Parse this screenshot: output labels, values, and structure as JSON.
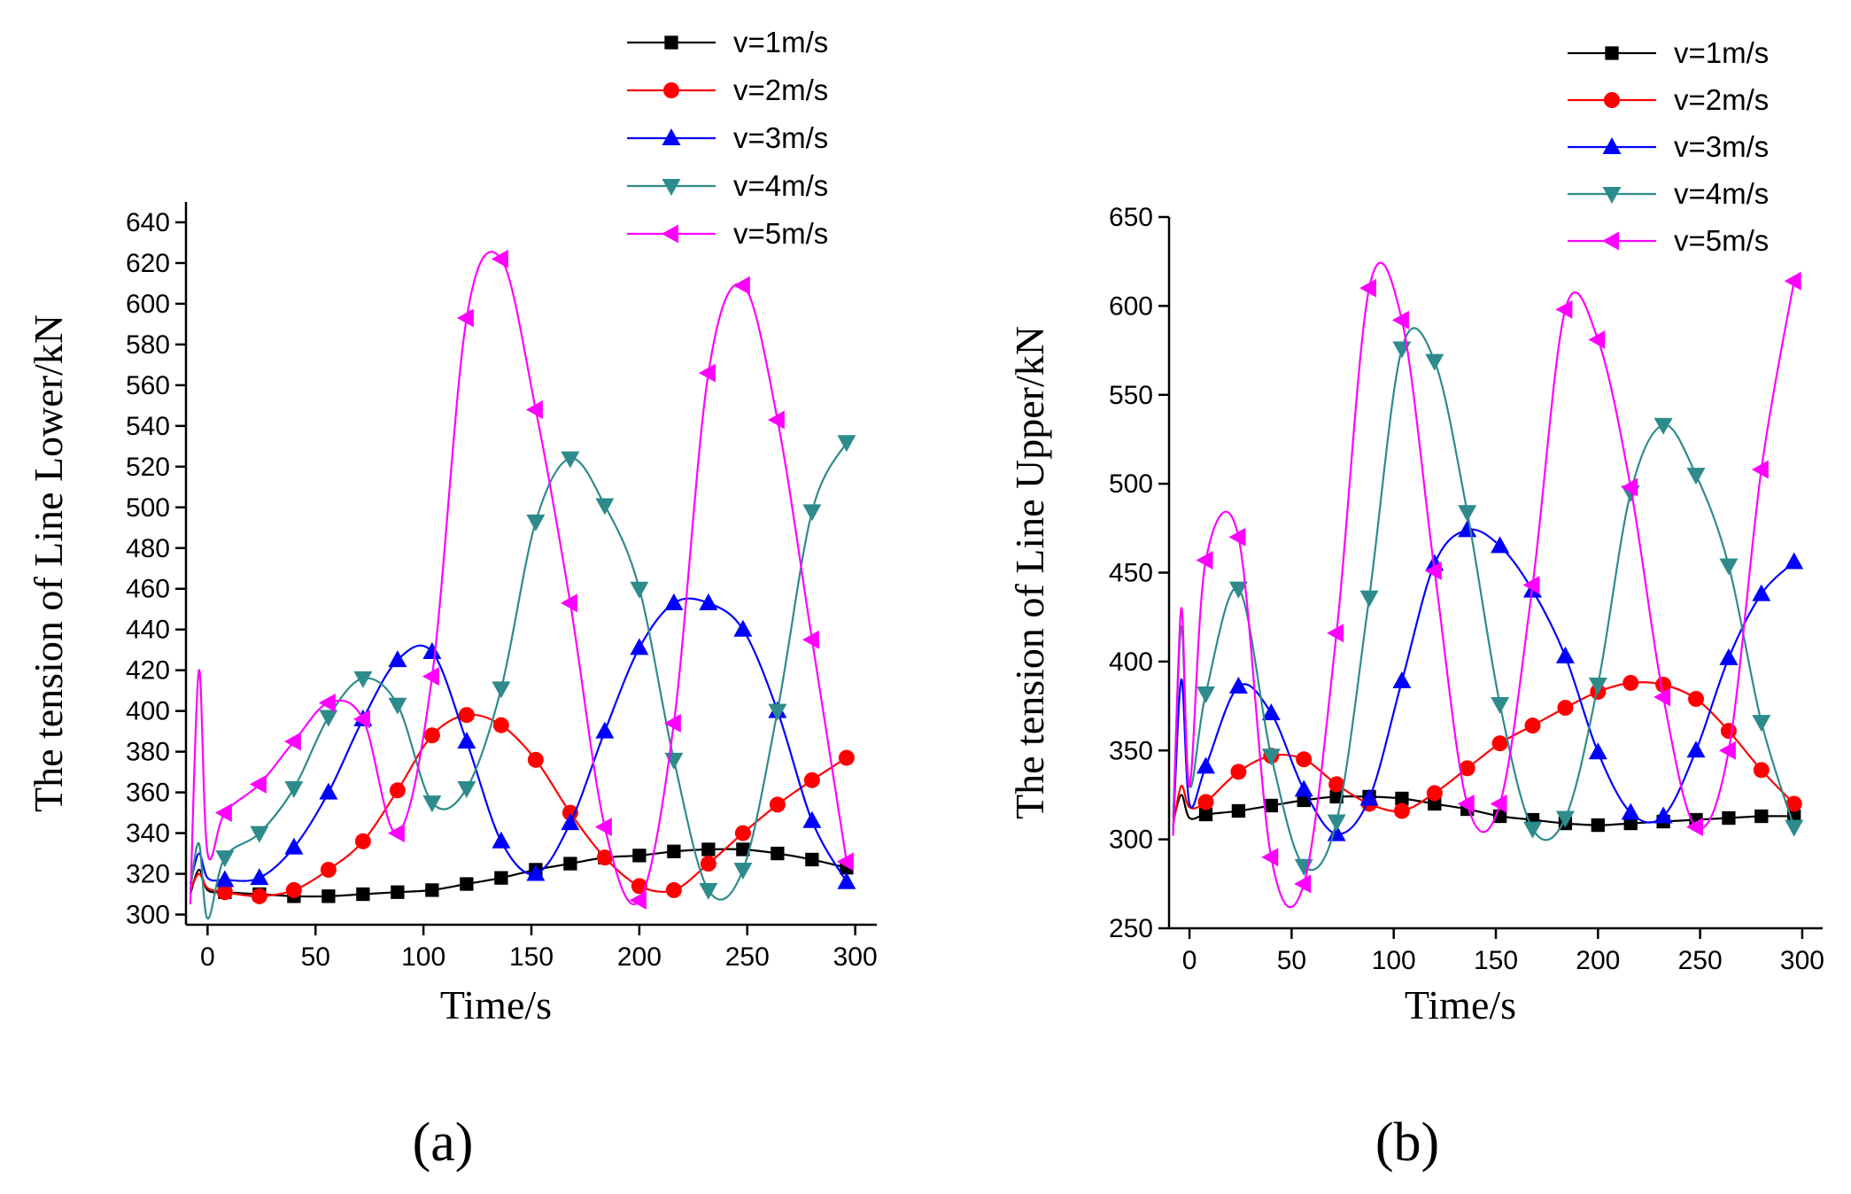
{
  "chart_data": [
    {
      "type": "line",
      "panel_label": "(a)",
      "xlabel": "Time/s",
      "ylabel": "The tension of Line Lower/kN",
      "xlim": [
        -10,
        310
      ],
      "ylim": [
        295,
        650
      ],
      "xticks": [
        0,
        50,
        100,
        150,
        200,
        250,
        300
      ],
      "yticks": [
        300,
        320,
        340,
        360,
        380,
        400,
        420,
        440,
        460,
        480,
        500,
        520,
        540,
        560,
        580,
        600,
        620,
        640
      ],
      "legend_position": "top-right",
      "series": [
        {
          "name": "v=1m/s",
          "color": "#000000",
          "marker": "square",
          "x": [
            -8,
            -4,
            0,
            8,
            24,
            40,
            56,
            72,
            88,
            104,
            120,
            136,
            152,
            168,
            184,
            200,
            216,
            232,
            248,
            264,
            280,
            296
          ],
          "y": [
            310,
            322,
            312,
            311,
            310,
            309,
            309,
            310,
            311,
            312,
            315,
            318,
            322,
            325,
            328,
            329,
            331,
            332,
            332,
            330,
            327,
            323
          ]
        },
        {
          "name": "v=2m/s",
          "color": "#ff0000",
          "marker": "circle",
          "x": [
            -8,
            -4,
            0,
            8,
            24,
            40,
            56,
            72,
            88,
            104,
            120,
            136,
            152,
            168,
            184,
            200,
            216,
            232,
            248,
            264,
            280,
            296
          ],
          "y": [
            312,
            320,
            313,
            311,
            309,
            312,
            322,
            336,
            361,
            388,
            398,
            393,
            376,
            350,
            328,
            314,
            312,
            325,
            340,
            354,
            366,
            377
          ]
        },
        {
          "name": "v=3m/s",
          "color": "#0000ff",
          "marker": "triangle-up",
          "x": [
            -8,
            -4,
            0,
            8,
            24,
            40,
            56,
            72,
            88,
            104,
            120,
            136,
            152,
            168,
            184,
            200,
            216,
            232,
            248,
            264,
            280,
            296
          ],
          "y": [
            315,
            330,
            318,
            317,
            318,
            333,
            360,
            396,
            425,
            429,
            385,
            336,
            320,
            345,
            390,
            431,
            453,
            453,
            440,
            400,
            346,
            316
          ]
        },
        {
          "name": "v=4m/s",
          "color": "#2e8b8b",
          "marker": "triangle-down",
          "x": [
            -8,
            -4,
            0,
            8,
            24,
            40,
            56,
            72,
            88,
            104,
            120,
            136,
            152,
            168,
            184,
            200,
            216,
            232,
            248,
            264,
            280,
            296
          ],
          "y": [
            312,
            335,
            298,
            328,
            340,
            362,
            397,
            416,
            403,
            355,
            362,
            411,
            493,
            524,
            501,
            460,
            376,
            312,
            322,
            400,
            498,
            532
          ]
        },
        {
          "name": "v=5m/s",
          "color": "#ff00ff",
          "marker": "triangle-left",
          "x": [
            -8,
            -4,
            0,
            8,
            24,
            40,
            56,
            72,
            88,
            104,
            120,
            136,
            152,
            168,
            184,
            200,
            216,
            232,
            248,
            264,
            280,
            296
          ],
          "y": [
            305,
            420,
            330,
            350,
            364,
            385,
            404,
            396,
            340,
            417,
            593,
            622,
            548,
            453,
            343,
            307,
            394,
            566,
            609,
            543,
            435,
            326
          ]
        }
      ]
    },
    {
      "type": "line",
      "panel_label": "(b)",
      "xlabel": "Time/s",
      "ylabel": "The tension of Line Upper/kN",
      "xlim": [
        -10,
        310
      ],
      "ylim": [
        250,
        650
      ],
      "xticks": [
        0,
        50,
        100,
        150,
        200,
        250,
        300
      ],
      "yticks": [
        250,
        300,
        350,
        400,
        450,
        500,
        550,
        600,
        650
      ],
      "legend_position": "top-right",
      "series": [
        {
          "name": "v=1m/s",
          "color": "#000000",
          "marker": "square",
          "x": [
            -8,
            -4,
            0,
            8,
            24,
            40,
            56,
            72,
            88,
            104,
            120,
            136,
            152,
            168,
            184,
            200,
            216,
            232,
            248,
            264,
            280,
            296
          ],
          "y": [
            310,
            325,
            312,
            314,
            316,
            319,
            322,
            324,
            324,
            323,
            320,
            317,
            313,
            311,
            309,
            308,
            309,
            310,
            311,
            312,
            313,
            313
          ]
        },
        {
          "name": "v=2m/s",
          "color": "#ff0000",
          "marker": "circle",
          "x": [
            -8,
            -4,
            0,
            8,
            24,
            40,
            56,
            72,
            88,
            104,
            120,
            136,
            152,
            168,
            184,
            200,
            216,
            232,
            248,
            264,
            280,
            296
          ],
          "y": [
            308,
            330,
            318,
            321,
            338,
            347,
            345,
            331,
            320,
            316,
            326,
            340,
            354,
            364,
            374,
            383,
            388,
            387,
            379,
            361,
            339,
            320
          ]
        },
        {
          "name": "v=3m/s",
          "color": "#0000ff",
          "marker": "triangle-up",
          "x": [
            -8,
            -4,
            0,
            8,
            24,
            40,
            56,
            72,
            88,
            104,
            120,
            136,
            152,
            168,
            184,
            200,
            216,
            232,
            248,
            264,
            280,
            296
          ],
          "y": [
            305,
            390,
            320,
            341,
            386,
            371,
            328,
            303,
            323,
            389,
            455,
            474,
            465,
            440,
            403,
            349,
            315,
            313,
            350,
            402,
            438,
            456
          ]
        },
        {
          "name": "v=4m/s",
          "color": "#2e8b8b",
          "marker": "triangle-down",
          "x": [
            -8,
            -4,
            0,
            8,
            24,
            40,
            56,
            72,
            88,
            104,
            120,
            136,
            152,
            168,
            184,
            200,
            216,
            232,
            248,
            264,
            280,
            296
          ],
          "y": [
            312,
            420,
            330,
            382,
            441,
            347,
            285,
            310,
            436,
            576,
            569,
            484,
            376,
            306,
            312,
            387,
            495,
            533,
            505,
            454,
            366,
            307
          ]
        },
        {
          "name": "v=5m/s",
          "color": "#ff00ff",
          "marker": "triangle-left",
          "x": [
            -8,
            -4,
            0,
            8,
            24,
            40,
            56,
            72,
            88,
            104,
            120,
            136,
            152,
            168,
            184,
            200,
            216,
            232,
            248,
            264,
            280,
            296
          ],
          "y": [
            302,
            430,
            330,
            457,
            470,
            290,
            275,
            416,
            610,
            592,
            451,
            320,
            320,
            443,
            598,
            581,
            498,
            380,
            307,
            350,
            508,
            614
          ]
        }
      ]
    }
  ]
}
